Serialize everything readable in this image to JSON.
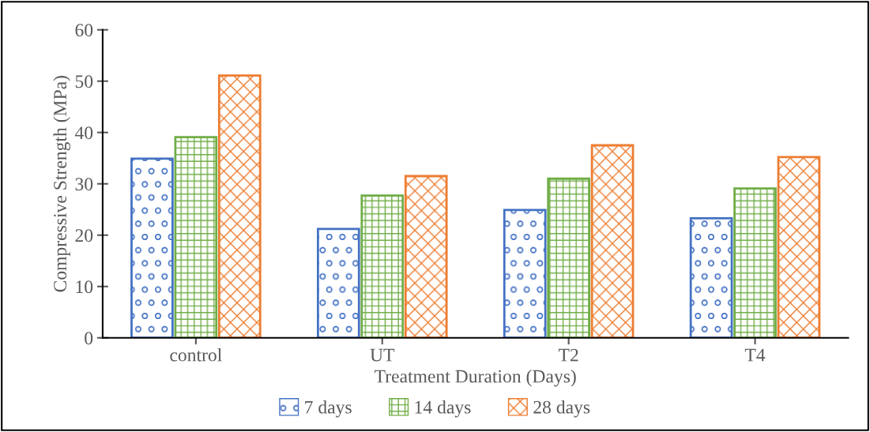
{
  "chart_data": {
    "type": "bar",
    "xlabel": "Treatment Duration (Days)",
    "ylabel": "Compressive Strength (MPa)",
    "categories": [
      "control",
      "UT",
      "T2",
      "T4"
    ],
    "series": [
      {
        "name": "7 days",
        "color": "#4472c4",
        "values": [
          34.9,
          21.2,
          24.9,
          23.3
        ]
      },
      {
        "name": "14 days",
        "color": "#70ad47",
        "values": [
          39.1,
          27.7,
          31.0,
          29.1
        ]
      },
      {
        "name": "28 days",
        "color": "#ed7d31",
        "values": [
          51.1,
          31.5,
          37.5,
          35.2
        ]
      }
    ],
    "ylim": [
      0,
      60
    ],
    "yticks": [
      0,
      10,
      20,
      30,
      40,
      50,
      60
    ],
    "grid": false,
    "legend": "bottom"
  }
}
